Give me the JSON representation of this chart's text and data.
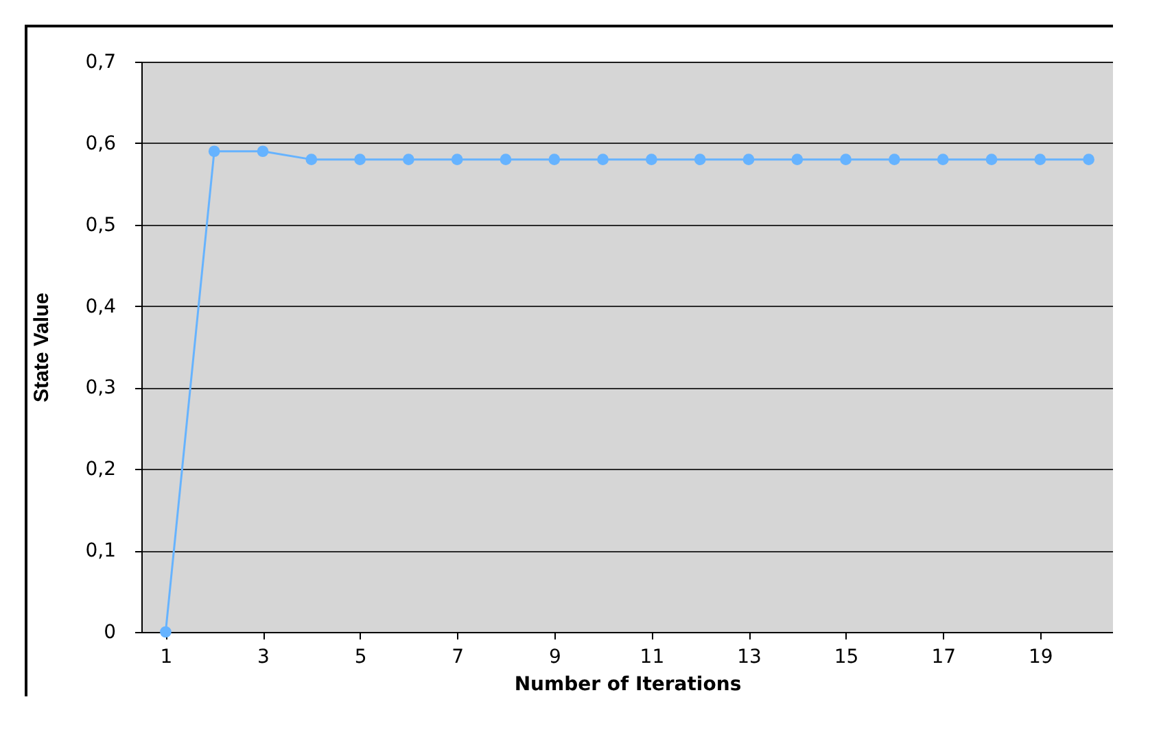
{
  "chart_data": {
    "type": "line",
    "xlabel": "Number of Iterations",
    "ylabel": "State Value",
    "x": [
      1,
      2,
      3,
      4,
      5,
      6,
      7,
      8,
      9,
      10,
      11,
      12,
      13,
      14,
      15,
      16,
      17,
      18,
      19,
      20
    ],
    "series": [
      {
        "color": "#66b3ff",
        "values": [
          0,
          0.59,
          0.59,
          0.58,
          0.58,
          0.58,
          0.58,
          0.58,
          0.58,
          0.58,
          0.58,
          0.58,
          0.58,
          0.58,
          0.58,
          0.58,
          0.58,
          0.58,
          0.58,
          0.58
        ]
      }
    ],
    "xlim": [
      0.5,
      20.5
    ],
    "xticks": [
      1,
      3,
      5,
      7,
      9,
      11,
      13,
      15,
      17,
      19
    ],
    "ylim": [
      0,
      0.7
    ],
    "yticks": [
      {
        "value": 0,
        "label": "0"
      },
      {
        "value": 0.1,
        "label": "0,1"
      },
      {
        "value": 0.2,
        "label": "0,2"
      },
      {
        "value": 0.3,
        "label": "0,3"
      },
      {
        "value": 0.4,
        "label": "0,4"
      },
      {
        "value": 0.5,
        "label": "0,5"
      },
      {
        "value": 0.6,
        "label": "0,6"
      },
      {
        "value": 0.7,
        "label": "0,7"
      }
    ],
    "grid": "y",
    "marker": "circle"
  }
}
